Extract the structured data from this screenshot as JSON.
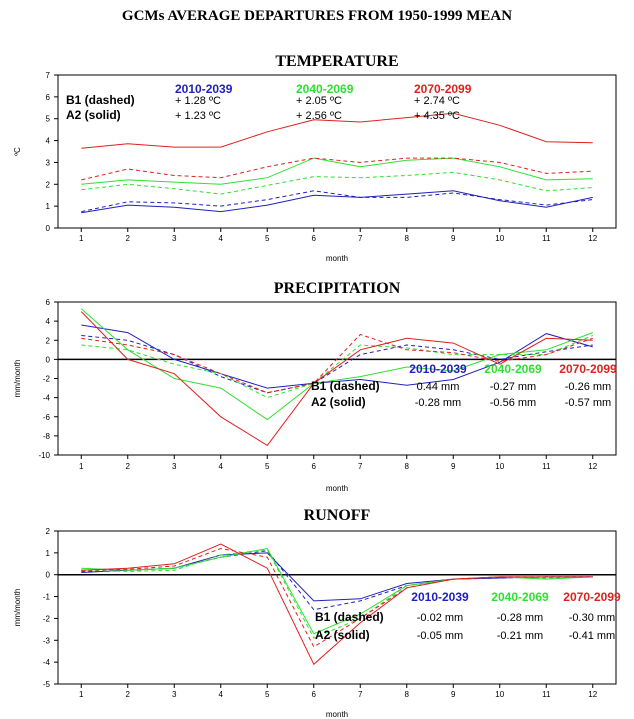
{
  "title": "GCMs AVERAGE DEPARTURES FROM 1950-1999 MEAN",
  "colors": {
    "p2010": "#2020c0",
    "p2040": "#30e030",
    "p2070": "#e02020"
  },
  "chart_data": [
    {
      "type": "line",
      "title": "TEMPERATURE",
      "xlabel": "month",
      "ylabel": "ºC",
      "x": [
        1,
        2,
        3,
        4,
        5,
        6,
        7,
        8,
        9,
        10,
        11,
        12
      ],
      "ylim": [
        0,
        7
      ],
      "yticks": [
        0,
        1,
        2,
        3,
        4,
        5,
        6,
        7
      ],
      "zero_line": false,
      "legend": {
        "periods": [
          "2010-2039",
          "2040-2069",
          "2070-2099"
        ],
        "b1_label": "B1 (dashed)",
        "a2_label": "A2 (solid)",
        "b1_values": [
          "+ 1.28 ºC",
          "+ 2.05 ºC",
          "+ 2.74 ºC"
        ],
        "a2_values": [
          "+ 1.23 ºC",
          "+ 2.56 ºC",
          "+ 4.35 ºC"
        ]
      },
      "series": [
        {
          "period": "2010-2039",
          "scenario": "A2",
          "values": [
            0.7,
            1.05,
            0.95,
            0.75,
            1.05,
            1.5,
            1.4,
            1.55,
            1.7,
            1.25,
            0.95,
            1.4
          ]
        },
        {
          "period": "2010-2039",
          "scenario": "B1",
          "values": [
            0.75,
            1.2,
            1.15,
            1.0,
            1.3,
            1.7,
            1.4,
            1.4,
            1.6,
            1.3,
            1.05,
            1.3
          ]
        },
        {
          "period": "2040-2069",
          "scenario": "A2",
          "values": [
            2.0,
            2.2,
            2.1,
            2.0,
            2.3,
            3.2,
            2.8,
            3.1,
            3.2,
            2.8,
            2.2,
            2.25
          ]
        },
        {
          "period": "2040-2069",
          "scenario": "B1",
          "values": [
            1.75,
            2.0,
            1.8,
            1.55,
            1.95,
            2.35,
            2.3,
            2.4,
            2.55,
            2.2,
            1.7,
            1.85
          ]
        },
        {
          "period": "2070-2099",
          "scenario": "A2",
          "values": [
            3.65,
            3.85,
            3.7,
            3.7,
            4.4,
            4.95,
            4.85,
            5.05,
            5.25,
            4.7,
            3.95,
            3.9
          ]
        },
        {
          "period": "2070-2099",
          "scenario": "B1",
          "values": [
            2.2,
            2.7,
            2.4,
            2.3,
            2.8,
            3.2,
            3.0,
            3.2,
            3.2,
            3.0,
            2.5,
            2.6
          ]
        }
      ]
    },
    {
      "type": "line",
      "title": "PRECIPITATION",
      "xlabel": "month",
      "ylabel": "mm/month",
      "x": [
        1,
        2,
        3,
        4,
        5,
        6,
        7,
        8,
        9,
        10,
        11,
        12
      ],
      "ylim": [
        -10,
        6
      ],
      "yticks": [
        -10,
        -8,
        -6,
        -4,
        -2,
        0,
        2,
        4,
        6
      ],
      "zero_line": true,
      "legend": {
        "periods": [
          "2010-2039",
          "2040-2069",
          "2070-2099"
        ],
        "b1_label": "B1 (dashed)",
        "a2_label": "A2 (solid)",
        "b1_values": [
          "0.44 mm",
          "-0.27 mm",
          "-0.26 mm"
        ],
        "a2_values": [
          "-0.28 mm",
          "-0.56 mm",
          "-0.57 mm"
        ]
      },
      "series": [
        {
          "period": "2010-2039",
          "scenario": "A2",
          "values": [
            3.6,
            2.8,
            0.0,
            -1.5,
            -3.0,
            -2.5,
            -2.1,
            -2.7,
            -2.1,
            -0.3,
            2.7,
            1.3
          ]
        },
        {
          "period": "2010-2039",
          "scenario": "B1",
          "values": [
            2.5,
            2.0,
            0.5,
            -1.8,
            -3.5,
            -2.5,
            0.5,
            1.5,
            1.0,
            0.0,
            0.8,
            1.5
          ]
        },
        {
          "period": "2040-2069",
          "scenario": "A2",
          "values": [
            5.3,
            1.0,
            -2.0,
            -3.0,
            -6.3,
            -2.5,
            -1.8,
            -0.8,
            -1.2,
            0.5,
            1.0,
            2.8
          ]
        },
        {
          "period": "2040-2069",
          "scenario": "B1",
          "values": [
            1.5,
            1.0,
            -0.5,
            -1.5,
            -4.0,
            -2.5,
            1.5,
            1.2,
            0.5,
            0.5,
            0.5,
            2.5
          ]
        },
        {
          "period": "2070-2099",
          "scenario": "A2",
          "values": [
            5.0,
            0.0,
            -1.5,
            -6.0,
            -9.0,
            -2.5,
            1.0,
            2.2,
            1.7,
            -0.5,
            2.2,
            2.0
          ]
        },
        {
          "period": "2070-2099",
          "scenario": "B1",
          "values": [
            2.2,
            1.5,
            0.5,
            -1.5,
            -3.5,
            -2.5,
            2.6,
            1.0,
            0.7,
            -0.2,
            0.5,
            2.2
          ]
        }
      ]
    },
    {
      "type": "line",
      "title": "RUNOFF",
      "xlabel": "month",
      "ylabel": "mm/month",
      "x": [
        1,
        2,
        3,
        4,
        5,
        6,
        7,
        8,
        9,
        10,
        11,
        12
      ],
      "ylim": [
        -5,
        2
      ],
      "yticks": [
        -5,
        -4,
        -3,
        -2,
        -1,
        0,
        1,
        2
      ],
      "zero_line": true,
      "legend": {
        "periods": [
          "2010-2039",
          "2040-2069",
          "2070-2099"
        ],
        "b1_label": "B1 (dashed)",
        "a2_label": "A2 (solid)",
        "b1_values": [
          "-0.02 mm",
          "-0.28 mm",
          "-0.30 mm"
        ],
        "a2_values": [
          "-0.05 mm",
          "-0.21 mm",
          "-0.41 mm"
        ]
      },
      "series": [
        {
          "period": "2010-2039",
          "scenario": "A2",
          "values": [
            0.1,
            0.2,
            0.3,
            0.9,
            1.0,
            -1.2,
            -1.1,
            -0.4,
            -0.2,
            -0.15,
            -0.1,
            -0.1
          ]
        },
        {
          "period": "2010-2039",
          "scenario": "B1",
          "values": [
            0.15,
            0.2,
            0.3,
            0.8,
            1.1,
            -1.6,
            -1.2,
            -0.5,
            -0.2,
            -0.15,
            -0.1,
            -0.1
          ]
        },
        {
          "period": "2040-2069",
          "scenario": "A2",
          "values": [
            0.3,
            0.2,
            0.3,
            0.8,
            1.2,
            -2.7,
            -1.8,
            -0.5,
            -0.2,
            -0.1,
            -0.2,
            -0.1
          ]
        },
        {
          "period": "2040-2069",
          "scenario": "B1",
          "values": [
            0.2,
            0.15,
            0.2,
            0.9,
            1.15,
            -2.9,
            -2.0,
            -0.5,
            -0.2,
            -0.1,
            -0.15,
            -0.1
          ]
        },
        {
          "period": "2070-2099",
          "scenario": "A2",
          "values": [
            0.2,
            0.3,
            0.5,
            1.4,
            0.3,
            -4.1,
            -2.2,
            -0.6,
            -0.2,
            -0.1,
            -0.1,
            -0.1
          ]
        },
        {
          "period": "2070-2099",
          "scenario": "B1",
          "values": [
            0.2,
            0.25,
            0.4,
            1.2,
            0.8,
            -3.3,
            -2.0,
            -0.6,
            -0.2,
            -0.1,
            -0.1,
            -0.1
          ]
        }
      ]
    }
  ]
}
